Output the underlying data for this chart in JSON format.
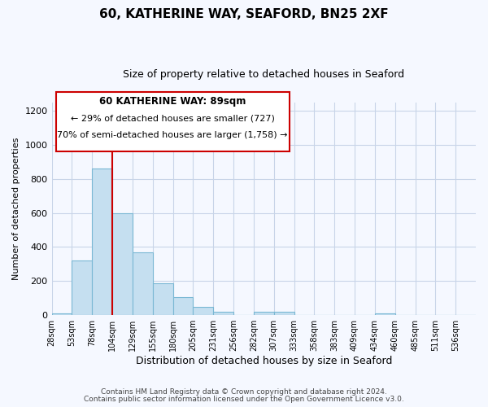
{
  "title": "60, KATHERINE WAY, SEAFORD, BN25 2XF",
  "subtitle": "Size of property relative to detached houses in Seaford",
  "xlabel": "Distribution of detached houses by size in Seaford",
  "ylabel": "Number of detached properties",
  "bin_labels": [
    "28sqm",
    "53sqm",
    "78sqm",
    "104sqm",
    "129sqm",
    "155sqm",
    "180sqm",
    "205sqm",
    "231sqm",
    "256sqm",
    "282sqm",
    "307sqm",
    "333sqm",
    "358sqm",
    "383sqm",
    "409sqm",
    "434sqm",
    "460sqm",
    "485sqm",
    "511sqm",
    "536sqm"
  ],
  "bar_heights": [
    10,
    320,
    860,
    600,
    370,
    185,
    105,
    47,
    20,
    0,
    20,
    20,
    0,
    0,
    0,
    0,
    10,
    0,
    0,
    0,
    0
  ],
  "bar_color": "#c5dff0",
  "bar_edge_color": "#7ab8d4",
  "vline_color": "#cc0000",
  "ylim": [
    0,
    1250
  ],
  "yticks": [
    0,
    200,
    400,
    600,
    800,
    1000,
    1200
  ],
  "annotation_title": "60 KATHERINE WAY: 89sqm",
  "annotation_line1": "← 29% of detached houses are smaller (727)",
  "annotation_line2": "70% of semi-detached houses are larger (1,758) →",
  "footer_line1": "Contains HM Land Registry data © Crown copyright and database right 2024.",
  "footer_line2": "Contains public sector information licensed under the Open Government Licence v3.0.",
  "annotation_box_color": "#ffffff",
  "annotation_box_edge": "#cc0000",
  "background_color": "#f5f8ff",
  "grid_color": "#c8d4e8"
}
